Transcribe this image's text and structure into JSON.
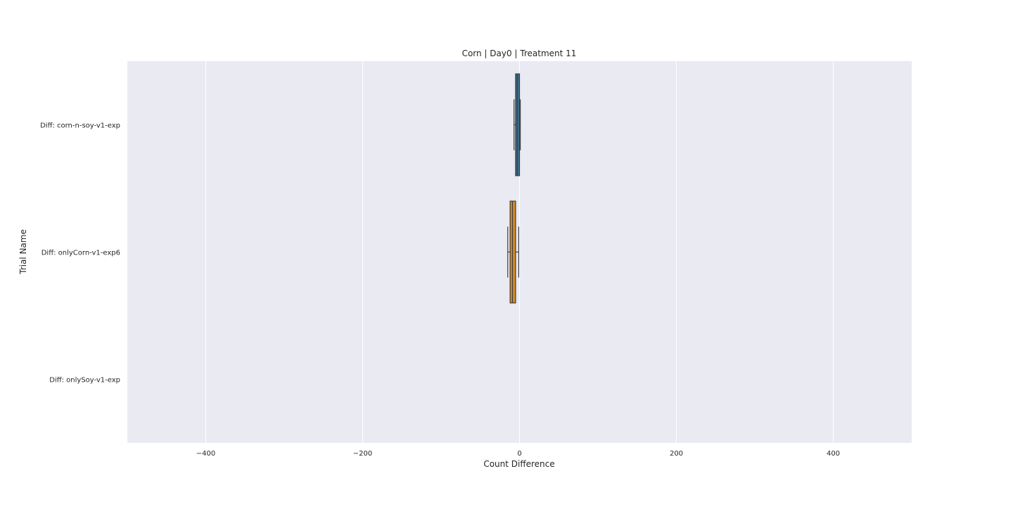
{
  "chart_data": {
    "type": "boxplot",
    "orientation": "horizontal",
    "title": "Corn | Day0 | Treatment 11",
    "xlabel": "Count Difference",
    "ylabel": "Trial Name",
    "xlim": [
      -500,
      500
    ],
    "xticks": [
      -400,
      -200,
      0,
      200,
      400
    ],
    "xtick_labels": [
      "−400",
      "−200",
      "0",
      "200",
      "400"
    ],
    "grid": true,
    "background_color": "#eaeaf2",
    "grid_color": "#ffffff",
    "categories": [
      "Diff: corn-n-soy-v1-exp",
      "Diff: onlyCorn-v1-exp6",
      "Diff: onlySoy-v1-exp"
    ],
    "boxes": [
      {
        "category": "Diff: corn-n-soy-v1-exp",
        "whisker_low": -7,
        "q1": -5,
        "median": -3,
        "q3": 0,
        "whisker_high": 1,
        "color": "#3a6d8f"
      },
      {
        "category": "Diff: onlyCorn-v1-exp6",
        "whisker_low": -15,
        "q1": -12,
        "median": -9,
        "q3": -5,
        "whisker_high": -1,
        "color": "#d48a2a"
      },
      {
        "category": "Diff: onlySoy-v1-exp",
        "whisker_low": null,
        "q1": null,
        "median": null,
        "q3": null,
        "whisker_high": null,
        "color": "#4a8f4a"
      }
    ]
  }
}
